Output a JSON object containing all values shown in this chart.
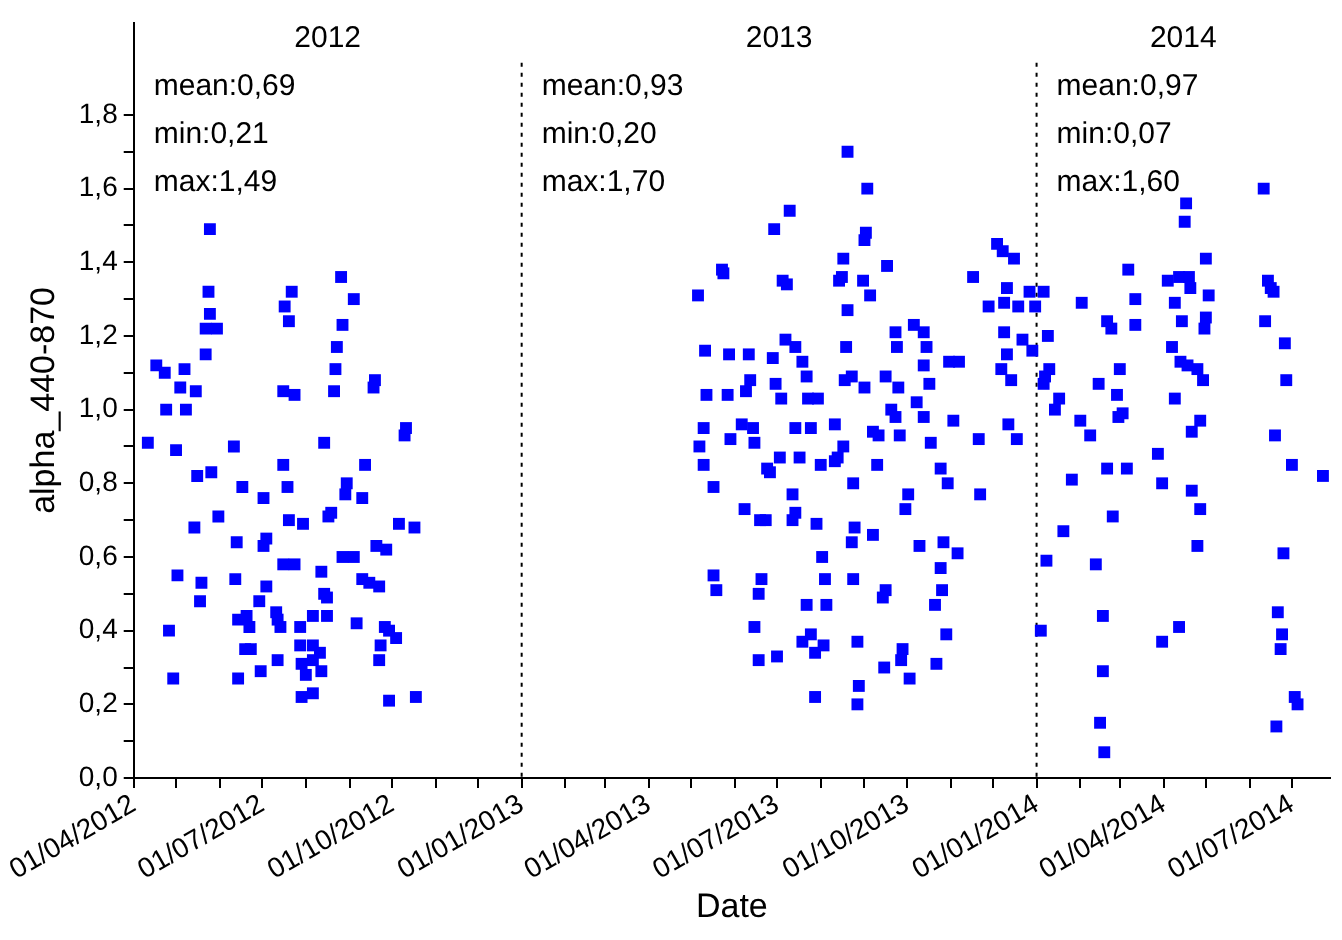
{
  "chart_data": {
    "type": "scatter",
    "xlabel": "Date",
    "ylabel": "alpha_440-870",
    "color": "#0000ff",
    "marker": "square",
    "xlim": [
      "2012-04-01",
      "2014-07-28"
    ],
    "ylim": [
      0,
      2.05
    ],
    "xticks": [
      {
        "value": "2012-04-01",
        "label": "01/04/2012"
      },
      {
        "value": "2012-05-01",
        "label": null
      },
      {
        "value": "2012-06-01",
        "label": null
      },
      {
        "value": "2012-07-01",
        "label": "01/07/2012"
      },
      {
        "value": "2012-08-01",
        "label": null
      },
      {
        "value": "2012-09-01",
        "label": null
      },
      {
        "value": "2012-10-01",
        "label": "01/10/2012"
      },
      {
        "value": "2012-11-01",
        "label": null
      },
      {
        "value": "2012-12-01",
        "label": null
      },
      {
        "value": "2013-01-01",
        "label": "01/01/2013"
      },
      {
        "value": "2013-02-01",
        "label": null
      },
      {
        "value": "2013-03-01",
        "label": null
      },
      {
        "value": "2013-04-01",
        "label": "01/04/2013"
      },
      {
        "value": "2013-05-01",
        "label": null
      },
      {
        "value": "2013-06-01",
        "label": null
      },
      {
        "value": "2013-07-01",
        "label": "01/07/2013"
      },
      {
        "value": "2013-08-01",
        "label": null
      },
      {
        "value": "2013-09-01",
        "label": null
      },
      {
        "value": "2013-10-01",
        "label": "01/10/2013"
      },
      {
        "value": "2013-11-01",
        "label": null
      },
      {
        "value": "2013-12-01",
        "label": null
      },
      {
        "value": "2014-01-01",
        "label": "01/01/2014"
      },
      {
        "value": "2014-02-01",
        "label": null
      },
      {
        "value": "2014-03-01",
        "label": null
      },
      {
        "value": "2014-04-01",
        "label": "01/04/2014"
      },
      {
        "value": "2014-05-01",
        "label": null
      },
      {
        "value": "2014-06-01",
        "label": null
      },
      {
        "value": "2014-07-01",
        "label": "01/07/2014"
      }
    ],
    "yticks": [
      {
        "value": 0,
        "label": "0,0"
      },
      {
        "value": 0.1,
        "label": null
      },
      {
        "value": 0.2,
        "label": "0,2"
      },
      {
        "value": 0.3,
        "label": null
      },
      {
        "value": 0.4,
        "label": "0,4"
      },
      {
        "value": 0.5,
        "label": null
      },
      {
        "value": 0.6,
        "label": "0,6"
      },
      {
        "value": 0.7,
        "label": null
      },
      {
        "value": 0.8,
        "label": "0,8"
      },
      {
        "value": 0.9,
        "label": null
      },
      {
        "value": 1.0,
        "label": "1,0"
      },
      {
        "value": 1.1,
        "label": null
      },
      {
        "value": 1.2,
        "label": "1,2"
      },
      {
        "value": 1.3,
        "label": null
      },
      {
        "value": 1.4,
        "label": "1,4"
      },
      {
        "value": 1.5,
        "label": null
      },
      {
        "value": 1.6,
        "label": "1,6"
      },
      {
        "value": 1.7,
        "label": null
      },
      {
        "value": 1.8,
        "label": "1,8"
      }
    ],
    "ref_lines": [
      {
        "axis": "x",
        "value": "2013-01-01",
        "line_style": "dotted",
        "color": "#000000"
      },
      {
        "axis": "x",
        "value": "2014-01-01",
        "line_style": "dotted",
        "color": "#000000"
      }
    ],
    "annotations": [
      "2012",
      "mean:0,69",
      "min:0,21",
      "max:1,49",
      "2013",
      "mean:0,93",
      "min:0,20",
      "max:1,70",
      "2014",
      "mean:0,97",
      "min:0,07",
      "max:1,60"
    ],
    "x": [
      "2012-04-11",
      "2012-04-17",
      "2012-04-23",
      "2012-05-07",
      "2012-05-04",
      "2012-05-15",
      "2012-04-24",
      "2012-05-08",
      "2012-05-01",
      "2012-05-16",
      "2012-05-26",
      "2012-05-14",
      "2012-05-31",
      "2012-05-02",
      "2012-05-19",
      "2012-05-18",
      "2012-04-26",
      "2012-04-29",
      "2012-05-25",
      "2012-05-24",
      "2012-05-25",
      "2012-05-22",
      "2012-05-30",
      "2012-05-22",
      "2012-06-11",
      "2012-06-17",
      "2012-07-02",
      "2012-06-13",
      "2012-07-04",
      "2012-07-02",
      "2012-06-12",
      "2012-07-04",
      "2012-06-29",
      "2012-06-14",
      "2012-06-20",
      "2012-06-22",
      "2012-06-19",
      "2012-06-23",
      "2012-06-14",
      "2012-06-30",
      "2012-07-12",
      "2012-07-17",
      "2012-07-22",
      "2012-07-20",
      "2012-07-16",
      "2012-07-24",
      "2012-07-16",
      "2012-07-19",
      "2012-07-20",
      "2012-07-30",
      "2012-07-16",
      "2012-07-24",
      "2012-07-11",
      "2012-07-12",
      "2012-07-14",
      "2012-07-28",
      "2012-07-28",
      "2012-08-06",
      "2012-08-11",
      "2012-07-29",
      "2012-08-06",
      "2012-08-01",
      "2012-08-12",
      "2012-07-29",
      "2012-08-06",
      "2012-08-12",
      "2012-08-14",
      "2012-08-06",
      "2012-08-16",
      "2012-08-14",
      "2012-08-16",
      "2012-08-17",
      "2012-08-19",
      "2012-08-21",
      "2012-08-22",
      "2012-08-23",
      "2012-08-27",
      "2012-08-26",
      "2012-09-04",
      "2012-08-30",
      "2012-08-29",
      "2012-08-27",
      "2012-09-04",
      "2012-09-10",
      "2012-09-12",
      "2012-09-06",
      "2012-09-10",
      "2012-09-15",
      "2012-09-18",
      "2012-09-19",
      "2012-09-20",
      "2012-09-27",
      "2012-09-22",
      "2012-09-26",
      "2012-09-29",
      "2012-10-04",
      "2012-09-23",
      "2012-09-22",
      "2012-09-29",
      "2012-10-06",
      "2012-10-17",
      "2012-10-10",
      "2012-10-11",
      "2012-10-18",
      "2013-05-06",
      "2013-05-23",
      "2013-05-24",
      "2013-05-11",
      "2013-05-28",
      "2013-06-11",
      "2013-06-12",
      "2013-06-28",
      "2013-06-29",
      "2013-07-10",
      "2013-07-05",
      "2013-07-08",
      "2013-07-07",
      "2013-05-12",
      "2013-05-27",
      "2013-06-09",
      "2013-06-30",
      "2013-07-04",
      "2013-05-10",
      "2013-05-07",
      "2013-05-10",
      "2013-05-17",
      "2013-05-29",
      "2013-06-06",
      "2013-06-14",
      "2013-06-15",
      "2013-06-24",
      "2013-06-26",
      "2013-07-03",
      "2013-06-08",
      "2013-06-19",
      "2013-06-23",
      "2013-05-17",
      "2013-05-19",
      "2013-06-20",
      "2013-06-18",
      "2013-06-15",
      "2013-06-18",
      "2013-07-01",
      "2013-07-14",
      "2013-07-19",
      "2013-07-22",
      "2013-07-23",
      "2013-07-30",
      "2013-07-14",
      "2013-07-25",
      "2013-07-17",
      "2013-08-01",
      "2013-08-11",
      "2013-07-12",
      "2013-07-14",
      "2013-07-12",
      "2013-07-29",
      "2013-08-02",
      "2013-08-04",
      "2013-07-22",
      "2013-08-05",
      "2013-07-19",
      "2013-07-25",
      "2013-07-28",
      "2013-08-03",
      "2013-07-28",
      "2013-08-11",
      "2013-08-17",
      "2013-08-13",
      "2013-08-24",
      "2013-08-20",
      "2013-08-16",
      "2013-08-14",
      "2013-08-17",
      "2013-08-20",
      "2013-09-03",
      "2013-09-01",
      "2013-09-02",
      "2013-08-31",
      "2013-09-05",
      "2013-09-17",
      "2013-08-19",
      "2013-08-18",
      "2013-08-23",
      "2013-09-01",
      "2013-09-07",
      "2013-09-11",
      "2013-09-10",
      "2013-08-25",
      "2013-08-23",
      "2013-09-07",
      "2013-08-24",
      "2013-08-27",
      "2013-08-28",
      "2013-08-27",
      "2013-09-16",
      "2013-09-14",
      "2013-09-15",
      "2013-09-28",
      "2013-09-27",
      "2013-10-03",
      "2013-09-16",
      "2013-09-25",
      "2013-09-20",
      "2013-09-23",
      "2013-09-24",
      "2013-09-23",
      "2013-09-26",
      "2013-10-02",
      "2013-09-30",
      "2013-10-06",
      "2013-10-13",
      "2013-10-15",
      "2013-10-08",
      "2013-10-13",
      "2013-10-13",
      "2013-10-17",
      "2013-10-18",
      "2013-10-10",
      "2013-10-25",
      "2013-10-30",
      "2013-10-27",
      "2013-11-06",
      "2013-10-25",
      "2013-10-26",
      "2013-10-21",
      "2013-10-29",
      "2013-10-22",
      "2013-11-03",
      "2013-10-31",
      "2013-11-07",
      "2013-11-17",
      "2013-11-21",
      "2013-11-22",
      "2013-11-28",
      "2013-12-09",
      "2013-12-04",
      "2013-12-08",
      "2013-12-16",
      "2013-12-11",
      "2013-12-19",
      "2013-12-09",
      "2013-12-11",
      "2013-12-07",
      "2013-12-14",
      "2013-12-12",
      "2013-12-18",
      "2013-12-27",
      "2013-12-31",
      "2014-01-06",
      "2013-12-22",
      "2013-12-29",
      "2014-01-04",
      "2014-01-08",
      "2014-01-09",
      "2014-01-10",
      "2014-01-06",
      "2014-01-07",
      "2014-01-17",
      "2014-01-14",
      "2014-01-20",
      "2014-01-26",
      "2014-02-01",
      "2014-02-08",
      "2014-02-02",
      "2014-02-14",
      "2014-02-12",
      "2014-02-17",
      "2014-02-17",
      "2014-02-15",
      "2014-02-18",
      "2014-02-20",
      "2014-02-23",
      "2014-02-20",
      "2014-03-06",
      "2014-02-24",
      "2014-03-01",
      "2014-02-27",
      "2014-02-28",
      "2014-03-03",
      "2014-03-07",
      "2014-03-12",
      "2014-03-12",
      "2014-03-28",
      "2014-03-31",
      "2014-03-31",
      "2014-04-12",
      "2014-04-04",
      "2014-04-12",
      "2014-04-09",
      "2014-04-14",
      "2014-04-07",
      "2014-04-13",
      "2014-04-18",
      "2014-04-25",
      "2014-04-09",
      "2014-04-16",
      "2014-04-17",
      "2014-04-19",
      "2014-04-20",
      "2014-04-21",
      "2014-04-27",
      "2014-04-29",
      "2014-04-21",
      "2014-04-27",
      "2014-04-25",
      "2014-05-01",
      "2014-05-03",
      "2014-05-01",
      "2014-04-30",
      "2014-06-11",
      "2014-06-14",
      "2014-06-16",
      "2014-06-18",
      "2014-06-12",
      "2014-06-26",
      "2014-06-27",
      "2014-06-19",
      "2014-07-01",
      "2014-06-25",
      "2014-06-21",
      "2014-06-24",
      "2014-06-23",
      "2014-07-03",
      "2014-07-05",
      "2014-06-20",
      "2014-07-23"
    ],
    "values": [
      0.91,
      1.12,
      1.1,
      1.11,
      1.06,
      1.05,
      1.0,
      1.0,
      0.89,
      0.82,
      0.83,
      0.68,
      0.71,
      0.55,
      0.53,
      0.48,
      0.4,
      0.27,
      1.49,
      1.32,
      1.26,
      1.22,
      1.22,
      1.15,
      0.9,
      0.79,
      0.76,
      0.64,
      0.65,
      0.63,
      0.54,
      0.52,
      0.48,
      0.43,
      0.44,
      0.41,
      0.35,
      0.35,
      0.27,
      0.29,
      0.32,
      1.28,
      1.32,
      1.24,
      1.05,
      1.04,
      0.85,
      0.79,
      0.7,
      0.69,
      0.58,
      0.58,
      0.45,
      0.43,
      0.41,
      0.41,
      0.36,
      0.36,
      0.34,
      0.31,
      0.32,
      0.28,
      0.29,
      0.22,
      0.23,
      0.56,
      0.91,
      0.44,
      0.44,
      0.5,
      0.49,
      0.71,
      0.72,
      1.05,
      1.11,
      1.17,
      1.23,
      1.36,
      1.3,
      0.8,
      0.77,
      0.6,
      0.6,
      0.76,
      0.85,
      0.42,
      0.54,
      0.53,
      1.06,
      1.08,
      0.63,
      0.62,
      0.52,
      0.41,
      0.4,
      0.38,
      0.36,
      0.32,
      0.21,
      0.69,
      0.68,
      0.93,
      0.95,
      0.22,
      1.31,
      1.38,
      1.37,
      1.16,
      1.15,
      1.15,
      1.08,
      1.14,
      1.49,
      1.54,
      1.35,
      1.34,
      1.19,
      1.04,
      1.04,
      1.05,
      1.07,
      1.03,
      0.95,
      0.9,
      0.85,
      0.79,
      0.92,
      0.96,
      0.95,
      0.91,
      0.84,
      0.83,
      0.87,
      0.73,
      0.7,
      0.7,
      0.55,
      0.51,
      0.54,
      0.5,
      0.41,
      0.32,
      0.33,
      1.17,
      1.13,
      1.09,
      1.03,
      1.03,
      0.95,
      0.95,
      0.87,
      0.85,
      0.86,
      0.77,
      0.72,
      0.7,
      0.69,
      0.6,
      0.54,
      0.47,
      0.47,
      0.37,
      0.39,
      0.34,
      0.36,
      0.22,
      0.96,
      0.9,
      0.87,
      0.8,
      1.27,
      1.36,
      1.35,
      1.41,
      1.7,
      1.6,
      1.46,
      1.48,
      1.35,
      1.31,
      1.39,
      1.17,
      1.08,
      1.09,
      1.06,
      0.94,
      0.93,
      0.85,
      0.68,
      0.64,
      0.66,
      0.54,
      0.37,
      0.25,
      0.2,
      0.51,
      0.49,
      0.3,
      0.35,
      0.32,
      0.27,
      1.09,
      1.06,
      1.0,
      0.98,
      1.17,
      1.21,
      0.93,
      0.77,
      0.73,
      1.23,
      1.21,
      1.17,
      1.02,
      0.98,
      1.12,
      1.07,
      0.91,
      0.63,
      0.84,
      0.8,
      0.64,
      0.61,
      0.57,
      0.51,
      0.47,
      0.39,
      0.31,
      0.97,
      1.13,
      1.13,
      1.36,
      0.92,
      0.77,
      1.28,
      1.29,
      1.45,
      1.43,
      1.41,
      1.33,
      1.28,
      1.21,
      1.15,
      1.11,
      1.08,
      0.96,
      0.92,
      1.32,
      1.28,
      1.32,
      1.19,
      1.16,
      0.4,
      0.59,
      1.2,
      1.11,
      1.07,
      1.09,
      1.03,
      1.0,
      0.67,
      0.81,
      0.97,
      0.93,
      1.29,
      1.07,
      0.58,
      0.44,
      0.29,
      0.15,
      0.07,
      1.24,
      1.22,
      0.84,
      0.84,
      0.71,
      1.11,
      1.04,
      0.98,
      0.99,
      1.38,
      1.3,
      1.23,
      0.88,
      0.8,
      0.37,
      0.41,
      1.35,
      1.36,
      1.29,
      1.24,
      1.17,
      1.13,
      1.12,
      1.11,
      1.03,
      1.51,
      1.56,
      1.36,
      1.33,
      0.94,
      0.97,
      1.08,
      0.78,
      0.73,
      0.63,
      1.41,
      1.31,
      1.25,
      1.22,
      1.6,
      1.35,
      1.33,
      1.32,
      1.24,
      1.18,
      1.08,
      0.93,
      0.85,
      0.61,
      0.45,
      0.39,
      0.35,
      0.22,
      0.2,
      0.14,
      0.82
    ]
  }
}
